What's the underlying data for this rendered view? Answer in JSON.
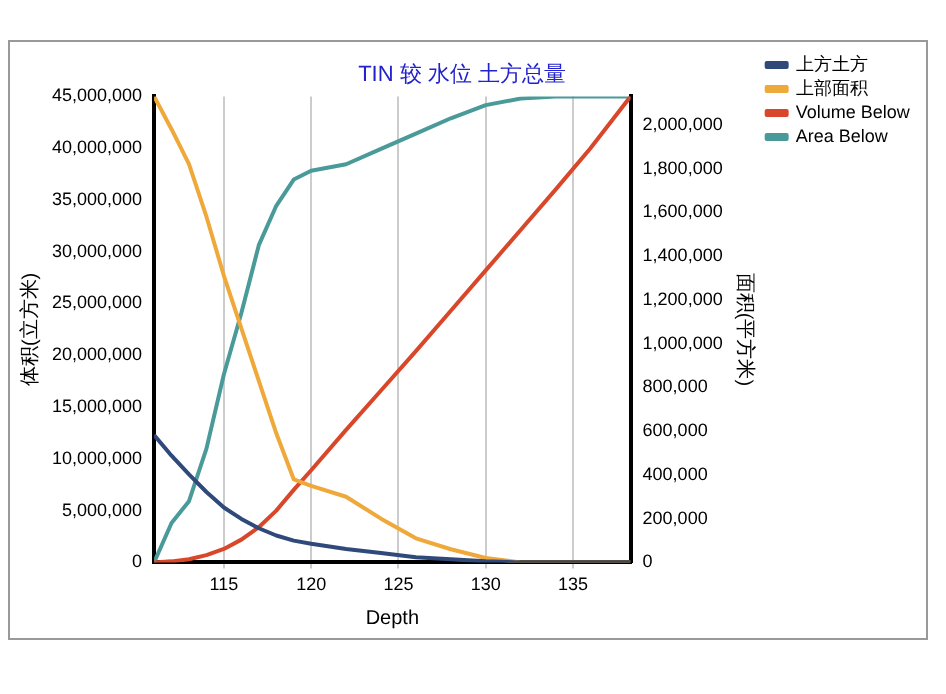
{
  "chart_data": {
    "type": "line",
    "title": "TIN 较 水位 土方总量",
    "xlabel": "Depth",
    "ylabel": "体积(立方米)",
    "y2label": "面积(平方米)",
    "xlim": [
      111,
      138.3
    ],
    "xticks": [
      115,
      120,
      125,
      130,
      135
    ],
    "ylim": [
      0,
      45000000
    ],
    "yticks": [
      0,
      {
        "value": 5000000,
        "label": "5,000,000"
      },
      {
        "value": 10000000,
        "label": "10,000,000"
      },
      {
        "value": 15000000,
        "label": "15,000,000"
      },
      {
        "value": 20000000,
        "label": "20,000,000"
      },
      {
        "value": 25000000,
        "label": "25,000,000"
      },
      {
        "value": 30000000,
        "label": "30,000,000"
      },
      {
        "value": 35000000,
        "label": "35,000,000"
      },
      {
        "value": 40000000,
        "label": "40,000,000"
      },
      {
        "value": 45000000,
        "label": "45,000,000"
      }
    ],
    "y2lim": [
      0,
      2130000
    ],
    "y2ticks": [
      0,
      {
        "value": 200000,
        "label": "200,000"
      },
      {
        "value": 400000,
        "label": "400,000"
      },
      {
        "value": 600000,
        "label": "600,000"
      },
      {
        "value": 800000,
        "label": "800,000"
      },
      {
        "value": 1000000,
        "label": "1,000,000"
      },
      {
        "value": 1200000,
        "label": "1,200,000"
      },
      {
        "value": 1400000,
        "label": "1,400,000"
      },
      {
        "value": 1600000,
        "label": "1,600,000"
      },
      {
        "value": 1800000,
        "label": "1,800,000"
      },
      {
        "value": 2000000,
        "label": "2,000,000"
      }
    ],
    "grid": "x",
    "legend": "right",
    "marker": "none",
    "line_style": "solid",
    "series": [
      {
        "name": "上方土方",
        "color": "#2f4a7a",
        "x": [
          111,
          112,
          113,
          114,
          115,
          116,
          117,
          118,
          119,
          120,
          122,
          124,
          126,
          128,
          130,
          132,
          138.3
        ],
        "values": [
          12300000,
          10300000,
          8500000,
          6800000,
          5300000,
          4200000,
          3300000,
          2600000,
          2100000,
          1800000,
          1300000,
          900000,
          500000,
          300000,
          100000,
          0,
          0
        ]
      },
      {
        "name": "上部面积",
        "color": "#efa83a",
        "axis": "y2",
        "x": [
          111,
          112,
          113,
          114,
          115,
          116,
          117,
          118,
          119,
          120,
          122,
          124,
          126,
          128,
          130,
          132,
          138.3
        ],
        "values": [
          2130000,
          1980000,
          1820000,
          1580000,
          1310000,
          1070000,
          830000,
          590000,
          380000,
          350000,
          300000,
          200000,
          110000,
          60000,
          20000,
          0,
          0
        ]
      },
      {
        "name": "Volume Below",
        "color": "#d9472b",
        "x": [
          111,
          112,
          113,
          114,
          115,
          116,
          117,
          118,
          119,
          120,
          122,
          124,
          126,
          128,
          130,
          132,
          134,
          136,
          138.3
        ],
        "values": [
          0,
          100000,
          300000,
          700000,
          1300000,
          2200000,
          3400000,
          5000000,
          7000000,
          8900000,
          12800000,
          16600000,
          20400000,
          24300000,
          28200000,
          32100000,
          36000000,
          40000000,
          45000000
        ]
      },
      {
        "name": "Area Below",
        "color": "#4a9a9a",
        "axis": "y2",
        "x": [
          111,
          112,
          113,
          114,
          115,
          116,
          117,
          118,
          119,
          120,
          122,
          124,
          126,
          128,
          130,
          132,
          134,
          138.3
        ],
        "values": [
          0,
          180000,
          280000,
          520000,
          860000,
          1140000,
          1450000,
          1630000,
          1750000,
          1790000,
          1820000,
          1890000,
          1960000,
          2030000,
          2090000,
          2120000,
          2130000,
          2130000
        ]
      }
    ]
  }
}
